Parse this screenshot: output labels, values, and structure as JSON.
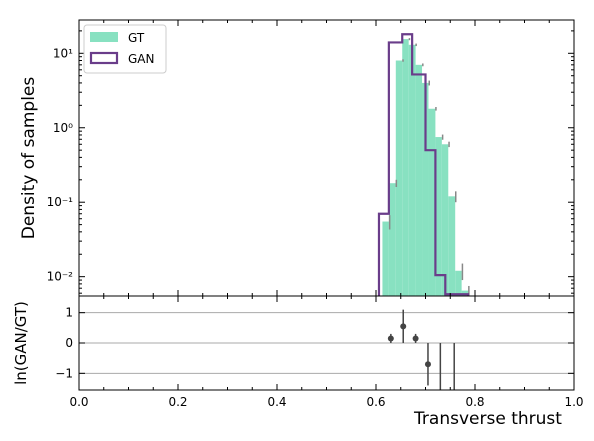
{
  "chart_data": [
    {
      "type": "bar",
      "panel": "main",
      "ylabel": "Density of samples",
      "yscale": "log",
      "xlim": [
        0,
        1
      ],
      "ylim": [
        0.0055,
        28
      ],
      "bin_edges": [
        0.6,
        0.625,
        0.65,
        0.675,
        0.7,
        0.725,
        0.75,
        0.775,
        0.8
      ],
      "yticks": [
        {
          "v": 0.01,
          "label": "10⁻²"
        },
        {
          "v": 0.1,
          "label": "10⁻¹"
        },
        {
          "v": 1,
          "label": "10⁰"
        },
        {
          "v": 10,
          "label": "10¹"
        }
      ],
      "legend": {
        "position": "top-left",
        "entries": [
          "GT",
          "GAN"
        ]
      },
      "series": [
        {
          "name": "GT",
          "style": "filled",
          "color": "#88e1c1",
          "bins": [
            {
              "x0": 0.613,
              "x1": 0.626,
              "y": 0.055,
              "err": 0.012
            },
            {
              "x0": 0.626,
              "x1": 0.64,
              "y": 0.18,
              "err": 0.02
            },
            {
              "x0": 0.64,
              "x1": 0.653,
              "y": 8.0,
              "err": 0.3
            },
            {
              "x0": 0.653,
              "x1": 0.666,
              "y": 15.5,
              "err": 0.5
            },
            {
              "x0": 0.666,
              "x1": 0.68,
              "y": 13.0,
              "err": 0.5
            },
            {
              "x0": 0.68,
              "x1": 0.693,
              "y": 7.0,
              "err": 0.3
            },
            {
              "x0": 0.693,
              "x1": 0.706,
              "y": 4.0,
              "err": 0.3
            },
            {
              "x0": 0.706,
              "x1": 0.72,
              "y": 1.8,
              "err": 0.1
            },
            {
              "x0": 0.72,
              "x1": 0.733,
              "y": 0.75,
              "err": 0.06
            },
            {
              "x0": 0.733,
              "x1": 0.746,
              "y": 0.6,
              "err": 0.05
            },
            {
              "x0": 0.746,
              "x1": 0.76,
              "y": 0.12,
              "err": 0.02
            },
            {
              "x0": 0.76,
              "x1": 0.773,
              "y": 0.012,
              "err": 0.003
            },
            {
              "x0": 0.773,
              "x1": 0.786,
              "y": 0.0065,
              "err": 0.001
            }
          ]
        },
        {
          "name": "GAN",
          "style": "step",
          "color": "#6a3d8a",
          "bins": [
            {
              "x0": 0.606,
              "x1": 0.626,
              "y": 0.07
            },
            {
              "x0": 0.626,
              "x1": 0.653,
              "y": 14.0
            },
            {
              "x0": 0.653,
              "x1": 0.673,
              "y": 18.0
            },
            {
              "x0": 0.673,
              "x1": 0.7,
              "y": 5.2
            },
            {
              "x0": 0.7,
              "x1": 0.72,
              "y": 0.5
            },
            {
              "x0": 0.72,
              "x1": 0.74,
              "y": 0.0105
            },
            {
              "x0": 0.74,
              "x1": 0.786,
              "y": 0.0058
            }
          ]
        }
      ]
    },
    {
      "type": "scatter",
      "panel": "ratio",
      "ylabel": "ln(GAN/GT)",
      "xlabel": "Transverse thrust",
      "xlim": [
        0,
        1
      ],
      "ylim": [
        -1.55,
        1.55
      ],
      "xticks": [
        {
          "v": 0,
          "label": "0.0"
        },
        {
          "v": 0.2,
          "label": "0.2"
        },
        {
          "v": 0.4,
          "label": "0.4"
        },
        {
          "v": 0.6,
          "label": "0.6"
        },
        {
          "v": 0.8,
          "label": "0.8"
        },
        {
          "v": 1.0,
          "label": "1.0"
        }
      ],
      "yticks": [
        {
          "v": 1,
          "label": "1"
        },
        {
          "v": 0,
          "label": "0"
        },
        {
          "v": -1,
          "label": "−1"
        }
      ],
      "gridlines_y": [
        1,
        0,
        -1
      ],
      "points": [
        {
          "x": 0.63,
          "y": 0.15,
          "err": 0.15
        },
        {
          "x": 0.655,
          "y": 0.55,
          "err": 0.55
        },
        {
          "x": 0.68,
          "y": 0.15,
          "err": 0.15
        },
        {
          "x": 0.705,
          "y": -0.7,
          "err": 0.7
        }
      ],
      "vlines_x": [
        0.73,
        0.758
      ]
    }
  ]
}
